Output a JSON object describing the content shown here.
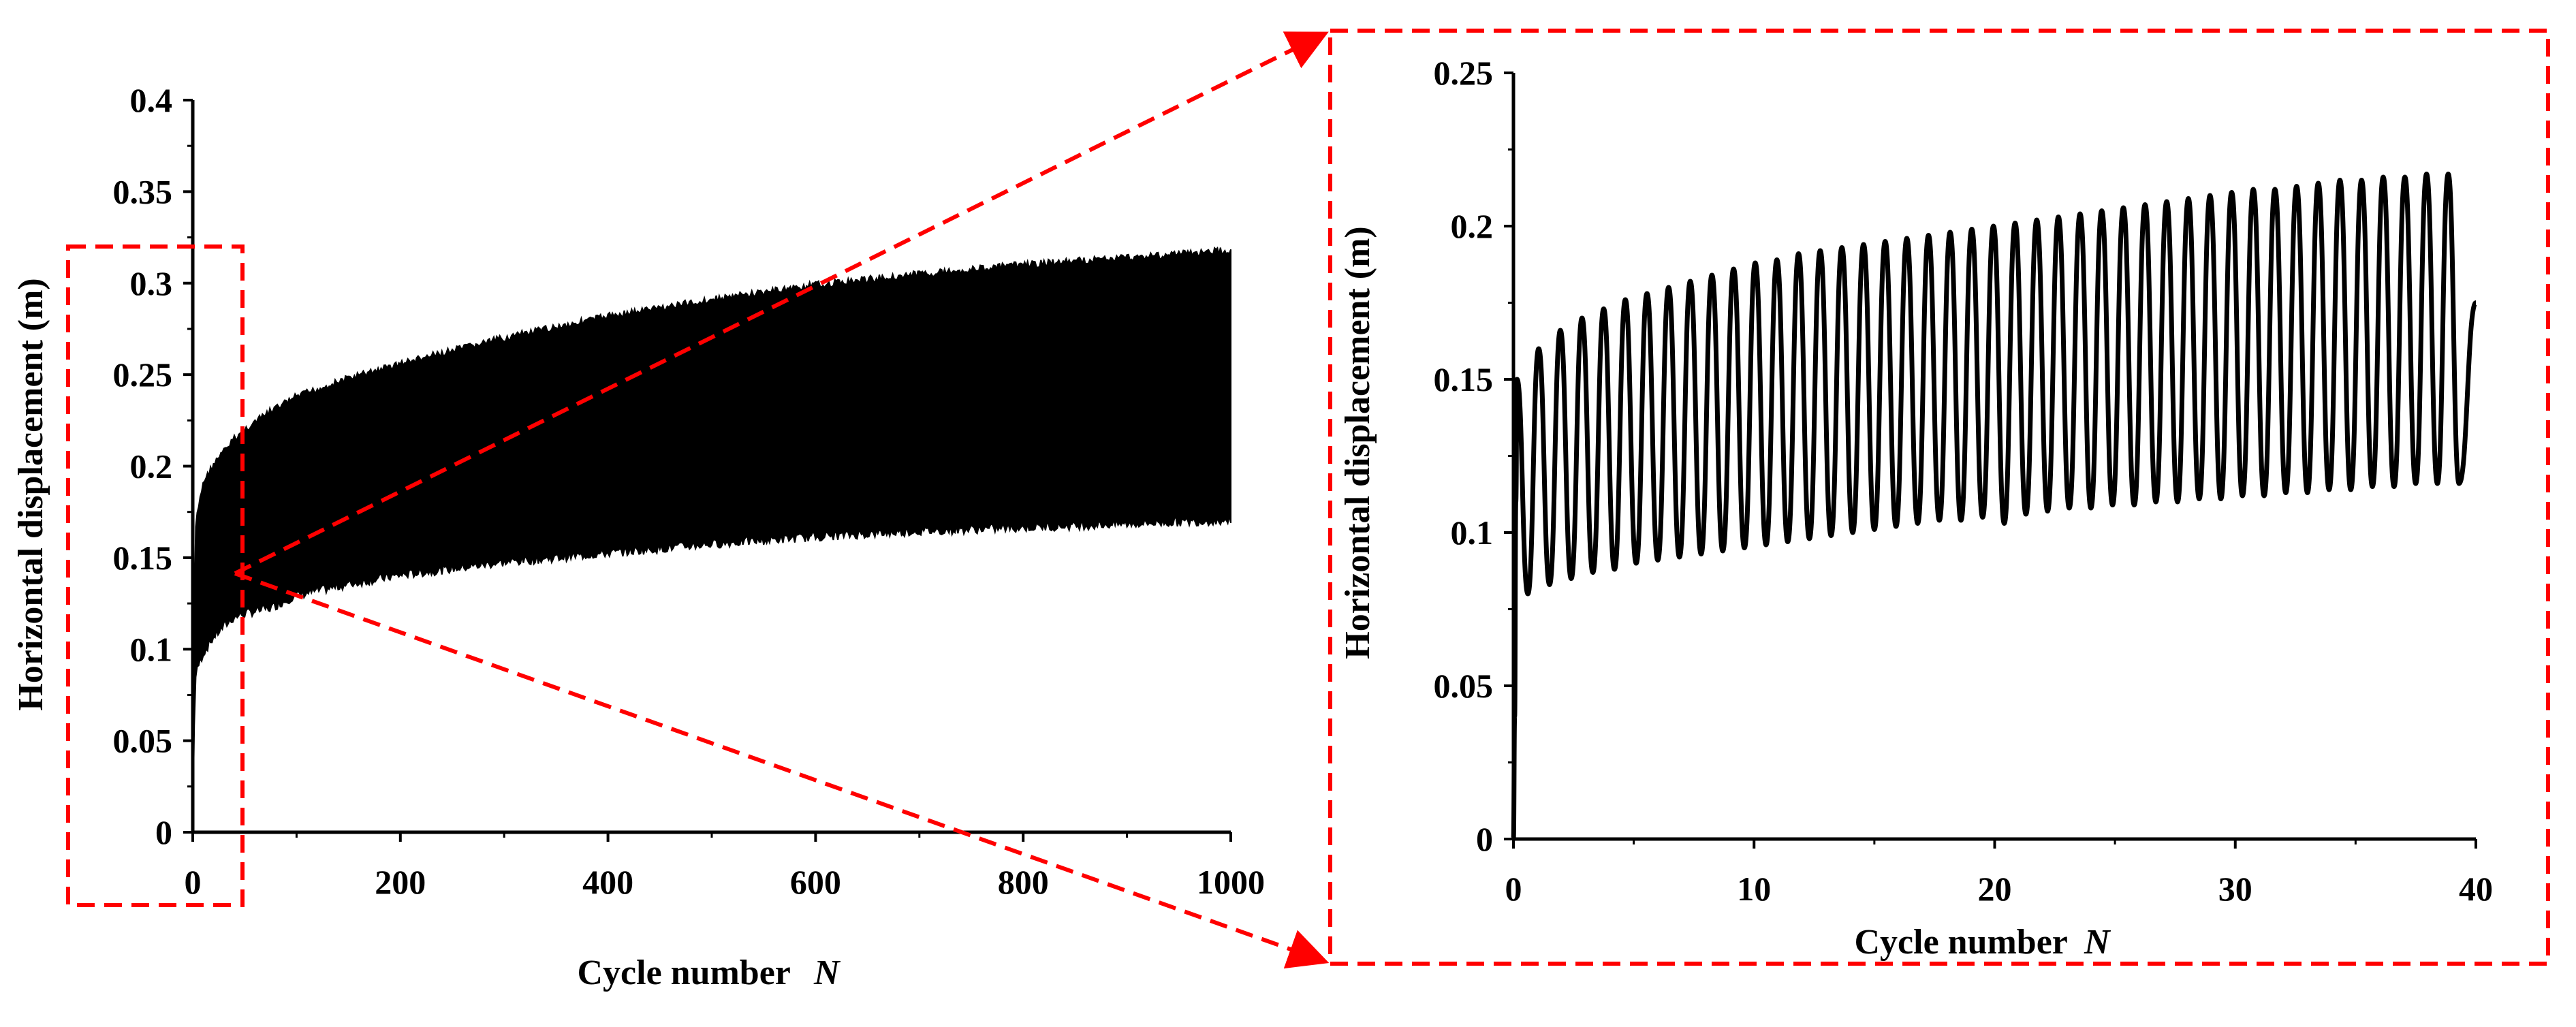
{
  "chart_data": [
    {
      "id": "overview",
      "type": "line",
      "render": "envelope-band",
      "xlabel": "Cycle number",
      "xlabel_var": "N",
      "ylabel": "Horizontal displacement (m)",
      "xlim": [
        0,
        1000
      ],
      "ylim": [
        0,
        0.4
      ],
      "xticks": [
        0,
        200,
        400,
        600,
        800,
        1000
      ],
      "yticks": [
        0,
        0.05,
        0.1,
        0.15,
        0.2,
        0.25,
        0.3,
        0.35,
        0.4
      ],
      "ytick_labels": [
        "0",
        "0.05",
        "0.1",
        "0.15",
        "0.2",
        "0.25",
        "0.3",
        "0.35",
        "0.4"
      ],
      "grid": false,
      "series": [
        {
          "color": "#000000",
          "upper_envelope": {
            "x": [
              0,
              2,
              5,
              10,
              20,
              30,
              40,
              50,
              75,
              100,
              150,
              200,
              300,
              400,
              500,
              600,
              700,
              800,
              900,
              1000
            ],
            "y": [
              0.0,
              0.165,
              0.178,
              0.193,
              0.203,
              0.21,
              0.217,
              0.222,
              0.232,
              0.24,
              0.25,
              0.258,
              0.272,
              0.284,
              0.293,
              0.301,
              0.307,
              0.312,
              0.316,
              0.32
            ]
          },
          "lower_envelope": {
            "x": [
              0,
              2,
              5,
              10,
              20,
              30,
              40,
              50,
              75,
              100,
              150,
              200,
              300,
              400,
              500,
              600,
              700,
              800,
              900,
              1000
            ],
            "y": [
              0.0,
              0.08,
              0.088,
              0.095,
              0.104,
              0.11,
              0.115,
              0.117,
              0.12,
              0.127,
              0.133,
              0.138,
              0.145,
              0.15,
              0.155,
              0.159,
              0.162,
              0.164,
              0.166,
              0.168
            ]
          }
        }
      ]
    },
    {
      "id": "zoom",
      "type": "line",
      "xlabel": "Cycle number",
      "xlabel_var": "N",
      "ylabel": "Horizontal displacement (m)",
      "xlim": [
        0,
        40
      ],
      "ylim": [
        0,
        0.25
      ],
      "xticks": [
        0,
        10,
        20,
        30,
        40
      ],
      "yticks": [
        0,
        0.05,
        0.1,
        0.15,
        0.2,
        0.25
      ],
      "ytick_labels": [
        "0",
        "0.05",
        "0.1",
        "0.15",
        "0.2",
        "0.25"
      ],
      "grid": false,
      "series": [
        {
          "color": "#000000",
          "cycle_start": 0.15,
          "cycle_period": 0.9,
          "end_x": 40,
          "end_y": 0.175,
          "peaks": [
            0.15,
            0.16,
            0.166,
            0.17,
            0.173,
            0.176,
            0.178,
            0.18,
            0.182,
            0.184,
            0.186,
            0.188,
            0.189,
            0.191,
            0.192,
            0.193,
            0.194,
            0.195,
            0.196,
            0.197,
            0.198,
            0.199,
            0.2,
            0.201,
            0.202,
            0.203,
            0.204,
            0.205,
            0.206,
            0.207,
            0.208,
            0.209,
            0.21,
            0.211,
            0.212,
            0.212,
            0.213,
            0.214,
            0.215,
            0.215,
            0.216,
            0.216,
            0.217,
            0.217
          ],
          "troughs": [
            0.08,
            0.083,
            0.085,
            0.087,
            0.088,
            0.09,
            0.091,
            0.092,
            0.093,
            0.094,
            0.095,
            0.096,
            0.097,
            0.098,
            0.099,
            0.1,
            0.101,
            0.102,
            0.103,
            0.104,
            0.104,
            0.105,
            0.103,
            0.106,
            0.107,
            0.108,
            0.108,
            0.109,
            0.109,
            0.11,
            0.11,
            0.111,
            0.111,
            0.112,
            0.112,
            0.113,
            0.113,
            0.114,
            0.114,
            0.115,
            0.115,
            0.116,
            0.116,
            0.116
          ]
        }
      ]
    }
  ],
  "callout": {
    "color": "#ff0000"
  }
}
